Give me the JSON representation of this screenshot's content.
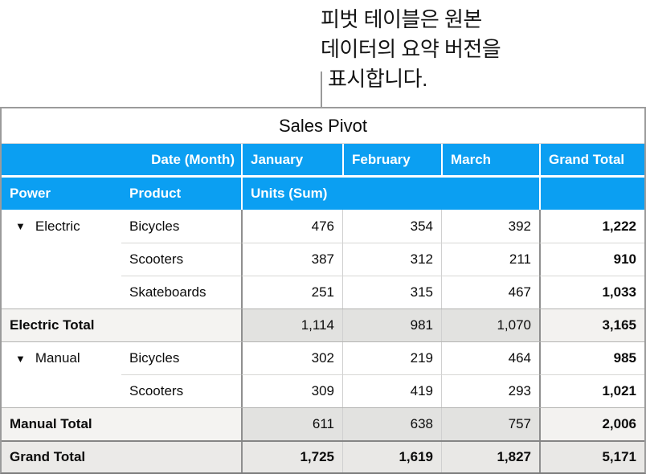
{
  "callout": {
    "lines": [
      "피벗 테이블은 원본",
      "데이터의 요약 버전을",
      "표시합니다."
    ]
  },
  "table": {
    "title": "Sales Pivot",
    "disclosure_glyph": "▼",
    "header": {
      "date_month": "Date (Month)",
      "months": [
        "January",
        "February",
        "March"
      ],
      "grand_total": "Grand Total",
      "power": "Power",
      "product": "Product",
      "units": "Units (Sum)"
    },
    "groups": [
      {
        "power": "Electric",
        "rows": [
          {
            "product": "Bicycles",
            "values": [
              "476",
              "354",
              "392"
            ],
            "grand": "1,222"
          },
          {
            "product": "Scooters",
            "values": [
              "387",
              "312",
              "211"
            ],
            "grand": "910"
          },
          {
            "product": "Skateboards",
            "values": [
              "251",
              "315",
              "467"
            ],
            "grand": "1,033"
          }
        ],
        "total": {
          "label": "Electric Total",
          "values": [
            "1,114",
            "981",
            "1,070"
          ],
          "grand": "3,165"
        }
      },
      {
        "power": "Manual",
        "rows": [
          {
            "product": "Bicycles",
            "values": [
              "302",
              "219",
              "464"
            ],
            "grand": "985"
          },
          {
            "product": "Scooters",
            "values": [
              "309",
              "419",
              "293"
            ],
            "grand": "1,021"
          }
        ],
        "total": {
          "label": "Manual Total",
          "values": [
            "611",
            "638",
            "757"
          ],
          "grand": "2,006"
        }
      }
    ],
    "grand": {
      "label": "Grand Total",
      "values": [
        "1,725",
        "1,619",
        "1,827"
      ],
      "grand": "5,171"
    }
  },
  "chart_data": {
    "type": "table",
    "title": "Sales Pivot",
    "columns": [
      "Power",
      "Product",
      "January",
      "February",
      "March",
      "Grand Total"
    ],
    "measure": "Units (Sum)",
    "rows": [
      [
        "Electric",
        "Bicycles",
        476,
        354,
        392,
        1222
      ],
      [
        "Electric",
        "Scooters",
        387,
        312,
        211,
        910
      ],
      [
        "Electric",
        "Skateboards",
        251,
        315,
        467,
        1033
      ],
      [
        "Electric Total",
        "",
        1114,
        981,
        1070,
        3165
      ],
      [
        "Manual",
        "Bicycles",
        302,
        219,
        464,
        985
      ],
      [
        "Manual",
        "Scooters",
        309,
        419,
        293,
        1021
      ],
      [
        "Manual Total",
        "",
        611,
        638,
        757,
        2006
      ],
      [
        "Grand Total",
        "",
        1725,
        1619,
        1827,
        5171
      ]
    ]
  },
  "colors": {
    "header_blue": "#0b9ff2",
    "header_text": "#ffffff",
    "total_label_fill": "#f4f3f1",
    "total_month_fill": "#e2e2e0",
    "grand_row_fill": "#e9e8e6",
    "border_dark": "#8f8f8f",
    "border_light": "#d0d0d0",
    "callout_line": "#9a9a9a"
  }
}
